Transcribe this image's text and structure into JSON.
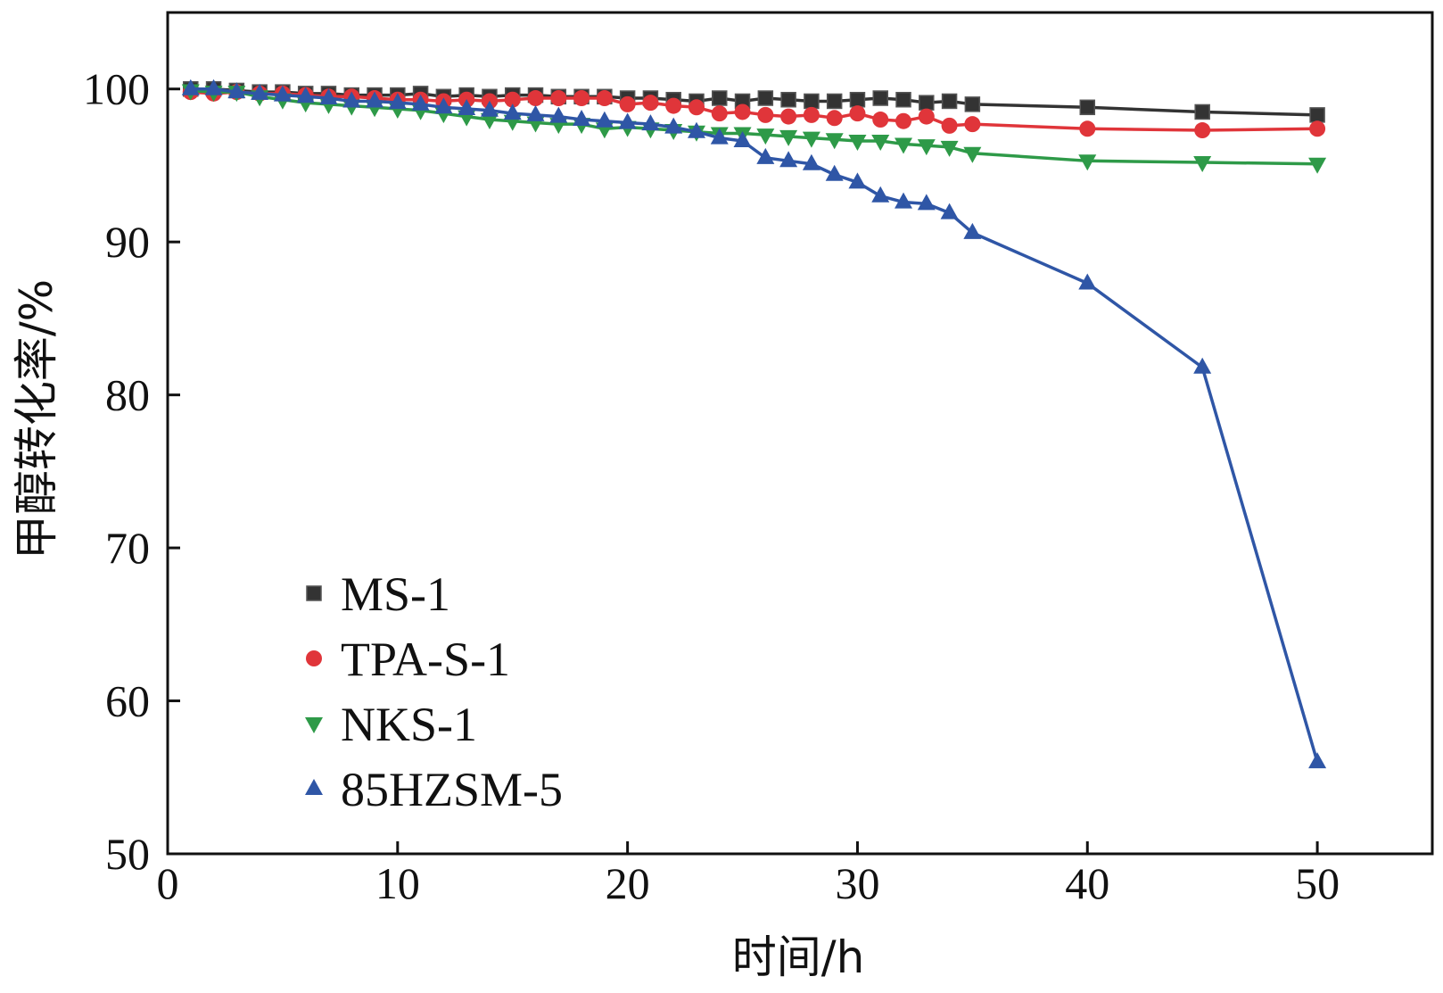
{
  "chart_data": {
    "type": "line",
    "title": "",
    "xlabel": "时间/h",
    "ylabel": "甲醇转化率/%",
    "xlim": [
      0,
      55
    ],
    "ylim": [
      50,
      105
    ],
    "xticks": [
      0,
      10,
      20,
      30,
      40,
      50
    ],
    "yticks": [
      50,
      60,
      70,
      80,
      90,
      100
    ],
    "grid": false,
    "legend_position": "lower-left",
    "series": [
      {
        "name": "MS-1",
        "color": "#333333",
        "marker": "square",
        "x": [
          1,
          2,
          3,
          4,
          5,
          6,
          7,
          8,
          9,
          10,
          11,
          12,
          13,
          14,
          15,
          16,
          17,
          18,
          19,
          20,
          21,
          22,
          23,
          24,
          25,
          26,
          27,
          28,
          29,
          30,
          31,
          32,
          33,
          34,
          35,
          40,
          45,
          50
        ],
        "y": [
          100,
          100,
          99.9,
          99.8,
          99.8,
          99.7,
          99.7,
          99.6,
          99.6,
          99.6,
          99.7,
          99.5,
          99.6,
          99.5,
          99.6,
          99.6,
          99.5,
          99.5,
          99.5,
          99.4,
          99.4,
          99.3,
          99.2,
          99.4,
          99.2,
          99.4,
          99.3,
          99.2,
          99.2,
          99.3,
          99.4,
          99.3,
          99.1,
          99.2,
          99.0,
          98.8,
          98.5,
          98.3
        ]
      },
      {
        "name": "TPA-S-1",
        "color": "#e0353a",
        "marker": "circle",
        "x": [
          1,
          2,
          3,
          4,
          5,
          6,
          7,
          8,
          9,
          10,
          11,
          12,
          13,
          14,
          15,
          16,
          17,
          18,
          19,
          20,
          21,
          22,
          23,
          24,
          25,
          26,
          27,
          28,
          29,
          30,
          31,
          32,
          33,
          34,
          35,
          40,
          45,
          50
        ],
        "y": [
          99.8,
          99.7,
          99.8,
          99.7,
          99.7,
          99.6,
          99.5,
          99.5,
          99.4,
          99.3,
          99.3,
          99.2,
          99.3,
          99.2,
          99.3,
          99.4,
          99.4,
          99.4,
          99.4,
          99.0,
          99.1,
          98.9,
          98.8,
          98.4,
          98.5,
          98.3,
          98.2,
          98.3,
          98.1,
          98.4,
          98.0,
          97.9,
          98.2,
          97.6,
          97.7,
          97.4,
          97.3,
          97.4
        ]
      },
      {
        "name": "NKS-1",
        "color": "#2e9a48",
        "marker": "triangle-down",
        "x": [
          1,
          2,
          3,
          4,
          5,
          6,
          7,
          8,
          9,
          10,
          11,
          12,
          13,
          14,
          15,
          16,
          17,
          18,
          19,
          20,
          21,
          22,
          23,
          24,
          25,
          26,
          27,
          28,
          29,
          30,
          31,
          32,
          33,
          34,
          35,
          40,
          45,
          50
        ],
        "y": [
          99.9,
          99.8,
          99.8,
          99.5,
          99.3,
          99.1,
          99.0,
          98.9,
          98.8,
          98.7,
          98.6,
          98.4,
          98.2,
          98.0,
          97.9,
          97.8,
          97.7,
          97.7,
          97.4,
          97.5,
          97.4,
          97.3,
          97.2,
          97.1,
          97.1,
          97.0,
          96.9,
          96.8,
          96.7,
          96.6,
          96.6,
          96.4,
          96.3,
          96.2,
          95.8,
          95.3,
          95.2,
          95.1
        ]
      },
      {
        "name": "85HZSM-5",
        "color": "#2f56a6",
        "marker": "triangle-up",
        "x": [
          1,
          2,
          3,
          4,
          5,
          6,
          7,
          8,
          9,
          10,
          11,
          12,
          13,
          14,
          15,
          16,
          17,
          18,
          19,
          20,
          21,
          22,
          23,
          24,
          25,
          26,
          27,
          28,
          29,
          30,
          31,
          32,
          33,
          34,
          35,
          40,
          45,
          50
        ],
        "y": [
          100,
          100,
          99.8,
          99.7,
          99.6,
          99.5,
          99.4,
          99.2,
          99.2,
          99.1,
          99.0,
          98.8,
          98.7,
          98.6,
          98.4,
          98.3,
          98.2,
          98.0,
          97.9,
          97.8,
          97.7,
          97.5,
          97.2,
          96.8,
          96.6,
          95.5,
          95.3,
          95.1,
          94.4,
          93.9,
          93.0,
          92.6,
          92.5,
          91.9,
          90.6,
          87.3,
          81.8,
          56.0
        ]
      }
    ]
  }
}
